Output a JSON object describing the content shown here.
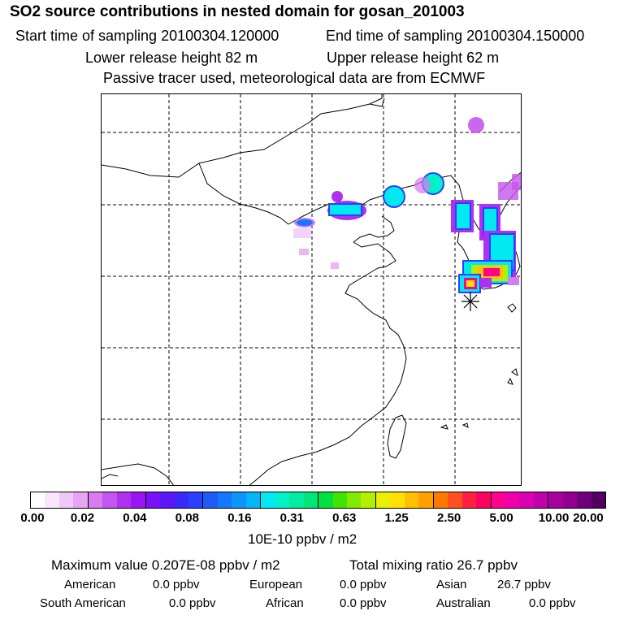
{
  "header": {
    "title": "SO2 source contributions in nested domain for gosan_201003",
    "start_time": "Start time of sampling 20100304.120000",
    "end_time": "End time of sampling 20100304.150000",
    "lower_height": "Lower release height   82 m",
    "upper_height": "Upper release height   62 m",
    "tracer_note": "Passive tracer used, meteorological data are from ECMWF"
  },
  "colorbar": {
    "colors": [
      "#ffffff",
      "#f8e6fb",
      "#f0c8f7",
      "#e6a4f3",
      "#d67bf0",
      "#c455ee",
      "#b030f0",
      "#9a14f4",
      "#7a10f6",
      "#5a16f8",
      "#3a28f8",
      "#2a40fa",
      "#1e5cfa",
      "#1478fa",
      "#0c96fa",
      "#06b4f8",
      "#00e8f0",
      "#00f0c8",
      "#00eca0",
      "#00e478",
      "#00e040",
      "#40e400",
      "#80ea00",
      "#b4ee00",
      "#e8f000",
      "#ffe000",
      "#ffc000",
      "#ffa000",
      "#ff7800",
      "#ff5020",
      "#ff2040",
      "#ff0060",
      "#ff0090",
      "#f000a8",
      "#d800b0",
      "#c000a8",
      "#a8009c",
      "#90008c",
      "#70007a",
      "#500060"
    ],
    "ticks": [
      "0.00",
      "0.02",
      "0.04",
      "0.08",
      "0.16",
      "0.31",
      "0.63",
      "1.25",
      "2.50",
      "5.00",
      "10.00",
      "20.00"
    ],
    "units": "10E-10 ppbv / m2"
  },
  "summary": {
    "max_value": "Maximum value  0.207E-08 ppbv / m2",
    "total_mixing": "Total mixing ratio       26.7 ppbv"
  },
  "sources": {
    "american_label": "American",
    "american_value": "0.0 ppbv",
    "european_label": "European",
    "european_value": "0.0 ppbv",
    "asian_label": "Asian",
    "asian_value": "26.7 ppbv",
    "south_american_label": "South American",
    "south_american_value": "0.0 ppbv",
    "african_label": "African",
    "african_value": "0.0 ppbv",
    "australian_label": "Australian",
    "australian_value": "0.0 ppbv"
  }
}
